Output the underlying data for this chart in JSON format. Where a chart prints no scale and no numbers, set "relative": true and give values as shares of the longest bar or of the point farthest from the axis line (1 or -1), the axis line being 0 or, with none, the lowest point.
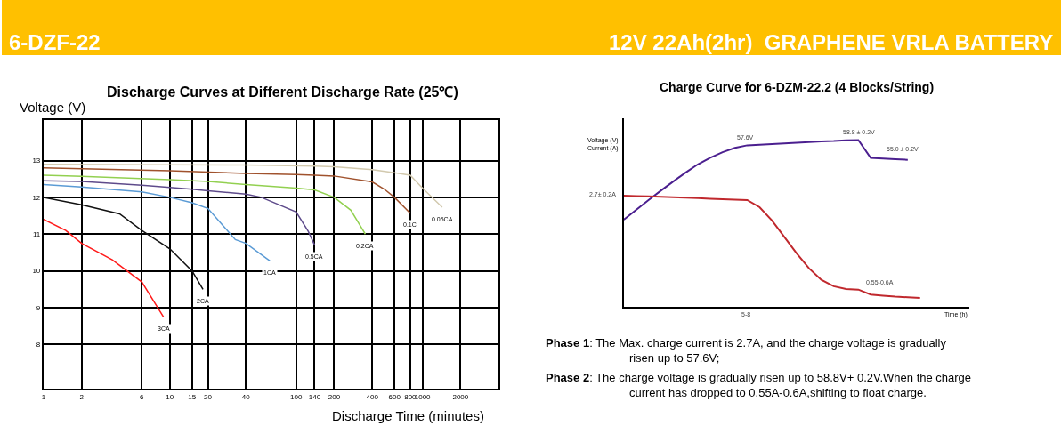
{
  "chart_data": [
    {
      "type": "line",
      "title": "Discharge Curves at Different Discharge Rate (25℃)",
      "xlabel": "Discharge Time (minutes)",
      "ylabel": "Voltage (V)",
      "log": "x",
      "grid": true,
      "annotations": [
        "6-DZF-22",
        "12V 22Ah(2hr)  GRAPHENE VRLA BATTERY"
      ],
      "xlim": [
        1,
        4000
      ],
      "xticks": [
        1,
        2,
        6,
        10,
        15,
        20,
        40,
        100,
        140,
        200,
        400,
        600,
        800,
        1000,
        2000
      ],
      "ylim": [
        6.8,
        14.1
      ],
      "yticks": [
        8,
        9,
        10,
        11,
        12,
        13
      ],
      "series": [
        {
          "name": "3CA",
          "color": "#ff1a1a",
          "x": [
            1,
            1.5,
            2,
            3.5,
            6,
            8.9
          ],
          "values": [
            11.4,
            11.1,
            10.75,
            10.3,
            9.7,
            8.75
          ]
        },
        {
          "name": "2CA",
          "color": "#111111",
          "x": [
            1,
            2,
            4,
            6,
            10,
            15,
            18.3
          ],
          "values": [
            12.0,
            11.8,
            11.55,
            11.1,
            10.6,
            10.0,
            9.5
          ]
        },
        {
          "name": "1CA",
          "color": "#5b9bd5",
          "x": [
            1,
            2,
            6,
            10,
            15,
            20,
            33,
            40,
            62
          ],
          "values": [
            12.35,
            12.28,
            12.15,
            12.0,
            11.85,
            11.7,
            10.85,
            10.75,
            10.27
          ]
        },
        {
          "name": "0.5CA",
          "color": "#5e4b8b",
          "x": [
            1,
            2,
            6,
            10,
            15,
            20,
            40,
            53,
            100,
            125,
            140
          ],
          "values": [
            12.45,
            12.43,
            12.33,
            12.27,
            12.22,
            12.18,
            12.09,
            12.0,
            11.6,
            11.07,
            10.7
          ]
        },
        {
          "name": "0.2CA",
          "color": "#92d050",
          "x": [
            1,
            2,
            10,
            20,
            40,
            100,
            140,
            200,
            271,
            353
          ],
          "values": [
            12.6,
            12.57,
            12.48,
            12.43,
            12.35,
            12.25,
            12.2,
            12.0,
            11.65,
            11.0
          ]
        },
        {
          "name": "0.1C",
          "color": "#a0522d",
          "x": [
            1,
            10,
            40,
            100,
            140,
            200,
            400,
            500,
            600,
            800
          ],
          "values": [
            12.8,
            12.72,
            12.65,
            12.62,
            12.6,
            12.58,
            12.42,
            12.22,
            12.0,
            11.57
          ]
        },
        {
          "name": "0.05CA",
          "color": "#d2c9ae",
          "x": [
            1,
            40,
            140,
            200,
            400,
            600,
            800,
            1000,
            1434
          ],
          "values": [
            12.9,
            12.88,
            12.85,
            12.83,
            12.75,
            12.67,
            12.6,
            12.25,
            11.73
          ]
        }
      ]
    },
    {
      "type": "line",
      "title": "Charge Curve for 6-DZM-22.2 (4 Blocks/String)",
      "xlabel": "Time (h)",
      "ylabel": "Voltage (V)\nCurrent (A)",
      "relative": true,
      "annotations": [
        "Phase 1: The Max. charge current is 2.7A, and the charge voltage is gradually risen up to 57.6V;",
        "Phase 2: The charge voltage is gradually risen up to 58.8V+ 0.2V.When the charge current has dropped to 0.55A-0.6A,shifting to float charge.",
        "57.6V",
        "58.8 ± 0.2V",
        "55.0 ± 0.2V",
        "2.7± 0.2A",
        "0.55-0.6A",
        "5-8"
      ],
      "categories": [
        null,
        null,
        null,
        null,
        null,
        null,
        null,
        null,
        null,
        null,
        null,
        null,
        null,
        null,
        null,
        null,
        null,
        null,
        null,
        null,
        null,
        null,
        null,
        null,
        null,
        null,
        null,
        null,
        null
      ],
      "series": [
        {
          "color": "#4b1f8f",
          "values": [
            0.522,
            0.581,
            0.64,
            0.696,
            0.751,
            0.804,
            0.854,
            0.893,
            0.927,
            0.953,
            0.968,
            0.972,
            0.976,
            0.98,
            0.984,
            0.988,
            0.992,
            0.994,
            0.998,
            1,
            0.893,
            0.889,
            0.885,
            0.881,
            null,
            null,
            null,
            null,
            null
          ],
          "line_style": "solid"
        },
        {
          "color": "#c0282d",
          "values": [
            0.666,
            0.664,
            0.662,
            0.66,
            0.657,
            0.654,
            0.651,
            0.648,
            0.645,
            0.642,
            0.64,
            0.597,
            0.518,
            0.419,
            0.32,
            0.231,
            0.162,
            0.123,
            0.107,
            0.103,
            0.073,
            0.067,
            0.061,
            0.057,
            0.053,
            null,
            null,
            null,
            null
          ],
          "line_style": "solid"
        }
      ]
    }
  ]
}
